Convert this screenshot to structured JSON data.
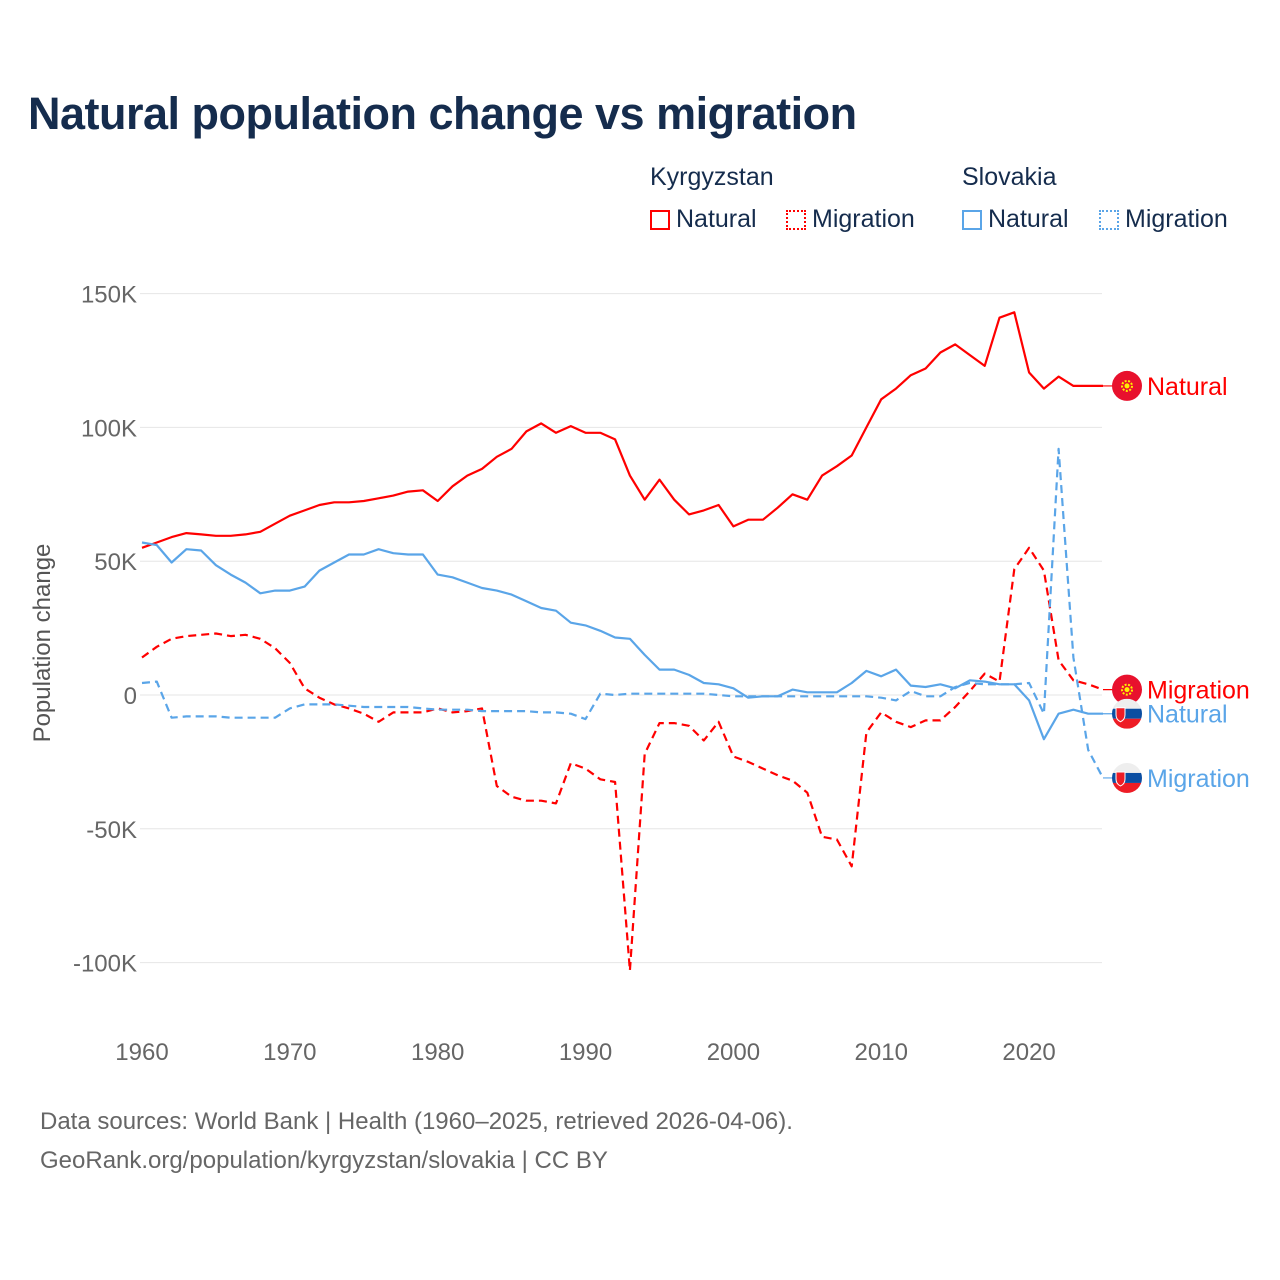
{
  "title": "Natural population change vs migration",
  "legend": {
    "groups": [
      {
        "name": "Kyrgyzstan",
        "color": "#ff0000",
        "items": [
          "Natural",
          "Migration"
        ]
      },
      {
        "name": "Slovakia",
        "color": "#5aa5e8",
        "items": [
          "Natural",
          "Migration"
        ]
      }
    ]
  },
  "footer": {
    "line1": "Data sources: World Bank | Health (1960–2025, retrieved 2026-04-06).",
    "line2": "GeoRank.org/population/kyrgyzstan/slovakia | CC BY"
  },
  "chart_data": {
    "type": "line",
    "title": "Natural population change vs migration",
    "xlabel": "",
    "ylabel": "Population change",
    "xlim": [
      1960,
      2025
    ],
    "ylim": [
      -115000,
      150000
    ],
    "x_ticks": [
      1960,
      1970,
      1980,
      1990,
      2000,
      2010,
      2020
    ],
    "y_ticks": [
      150000,
      100000,
      50000,
      0,
      -50000,
      -100000
    ],
    "y_tick_labels": [
      "150K",
      "100K",
      "50K",
      "0",
      "-50K",
      "-100K"
    ],
    "grid": true,
    "legend_position": "top-right",
    "x_start": 1960,
    "units": "thousands",
    "series": [
      {
        "name": "Kyrgyzstan Natural",
        "end_label": "Natural",
        "country": "kg",
        "color": "#ff0000",
        "dashed": false,
        "values": [
          55,
          57,
          59,
          60.5,
          60,
          59.5,
          59.5,
          60,
          61,
          64,
          67,
          69,
          71,
          72,
          72,
          72.5,
          73.5,
          74.5,
          76,
          76.5,
          72.5,
          78,
          82,
          84.5,
          89,
          92,
          98.5,
          101.5,
          98,
          100.5,
          98,
          98,
          95.5,
          82,
          73,
          80.5,
          73,
          67.5,
          69,
          71,
          63,
          65.5,
          65.5,
          70,
          75,
          73,
          82,
          85.5,
          89.5,
          100,
          110.5,
          114.5,
          119.5,
          122,
          128,
          131,
          127,
          123,
          141,
          143,
          120.5,
          114.5,
          119,
          115.5,
          115.5,
          115.5
        ]
      },
      {
        "name": "Kyrgyzstan Migration",
        "end_label": "Migration",
        "country": "kg",
        "color": "#ff0000",
        "dashed": true,
        "values": [
          14,
          18,
          21,
          22,
          22.5,
          23,
          22,
          22.5,
          21,
          17.5,
          12,
          2.5,
          -1,
          -3.5,
          -5,
          -7,
          -10,
          -6.5,
          -6.5,
          -6.5,
          -5,
          -6.5,
          -6,
          -5,
          -34,
          -38,
          -39.5,
          -39.5,
          -40.5,
          -25.5,
          -27.5,
          -31.5,
          -32.5,
          -103,
          -22,
          -10.5,
          -10.5,
          -11.5,
          -17,
          -10,
          -23,
          -25,
          -27.5,
          -30,
          -32,
          -36.5,
          -53,
          -54,
          -64,
          -14,
          -6.5,
          -10,
          -12,
          -9.5,
          -9.5,
          -4.5,
          1.5,
          8,
          5,
          47,
          55,
          46.5,
          13,
          5.5,
          4,
          2
        ]
      },
      {
        "name": "Slovakia Natural",
        "end_label": "Natural",
        "country": "sk",
        "color": "#5aa5e8",
        "dashed": false,
        "values": [
          57,
          56,
          49.5,
          54.5,
          54,
          48.5,
          45,
          42,
          38,
          39,
          39,
          40.5,
          46.5,
          49.5,
          52.5,
          52.5,
          54.5,
          53,
          52.5,
          52.5,
          45,
          44,
          42,
          40,
          39,
          37.5,
          35,
          32.5,
          31.5,
          27,
          26,
          24,
          21.5,
          21,
          15,
          9.5,
          9.5,
          7.5,
          4.5,
          4,
          2.5,
          -1,
          -0.5,
          -0.5,
          2,
          1,
          1,
          1,
          4.5,
          9,
          7,
          9.5,
          3.5,
          3,
          4,
          2.5,
          5.5,
          5,
          4,
          4,
          -2,
          -16.5,
          -7,
          -5.5,
          -7,
          -7
        ]
      },
      {
        "name": "Slovakia Migration",
        "end_label": "Migration",
        "country": "sk",
        "color": "#5aa5e8",
        "dashed": true,
        "values": [
          4.5,
          5,
          -8.5,
          -8,
          -8,
          -8,
          -8.5,
          -8.5,
          -8.5,
          -8.5,
          -5,
          -3.5,
          -3.5,
          -3.5,
          -4,
          -4.5,
          -4.5,
          -4.5,
          -4.5,
          -5,
          -5.5,
          -5.5,
          -5.5,
          -6,
          -6,
          -6,
          -6,
          -6.5,
          -6.5,
          -7,
          -9,
          0.5,
          0,
          0.5,
          0.5,
          0.5,
          0.5,
          0.5,
          0.5,
          0,
          -0.5,
          -0.5,
          -0.5,
          -0.5,
          -0.5,
          -0.5,
          -0.5,
          -0.5,
          -0.5,
          -0.5,
          -1,
          -2,
          1.5,
          -0.5,
          -0.5,
          3,
          4.5,
          4,
          4,
          4,
          4.5,
          -7,
          92,
          14,
          -20.5,
          -31
        ]
      }
    ]
  }
}
